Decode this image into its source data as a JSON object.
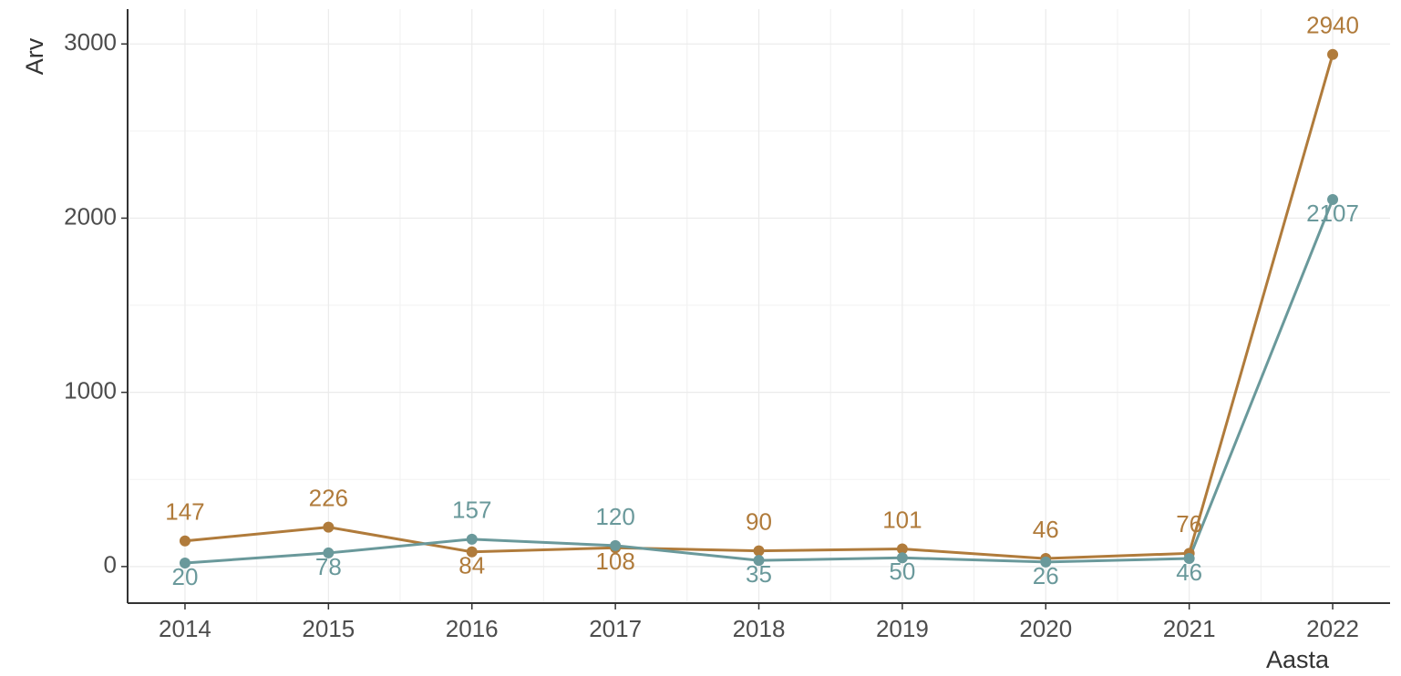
{
  "chart_data": {
    "type": "line",
    "x_label": "Aasta",
    "y_label": "Arv",
    "x": [
      2014,
      2015,
      2016,
      2017,
      2018,
      2019,
      2020,
      2021,
      2022
    ],
    "series": [
      {
        "color": "#b07b3b",
        "values": [
          147,
          226,
          84,
          108,
          90,
          101,
          46,
          76,
          2940
        ]
      },
      {
        "color": "#6a999b",
        "values": [
          20,
          78,
          157,
          120,
          35,
          50,
          26,
          46,
          2107
        ]
      }
    ],
    "xlim": [
      2013.6,
      2022.4
    ],
    "xticks": [
      2014,
      2015,
      2016,
      2017,
      2018,
      2019,
      2020,
      2021,
      2022
    ],
    "ylim": [
      -210,
      3200
    ],
    "yticks": [
      0,
      1000,
      2000,
      3000
    ],
    "grid": true
  }
}
